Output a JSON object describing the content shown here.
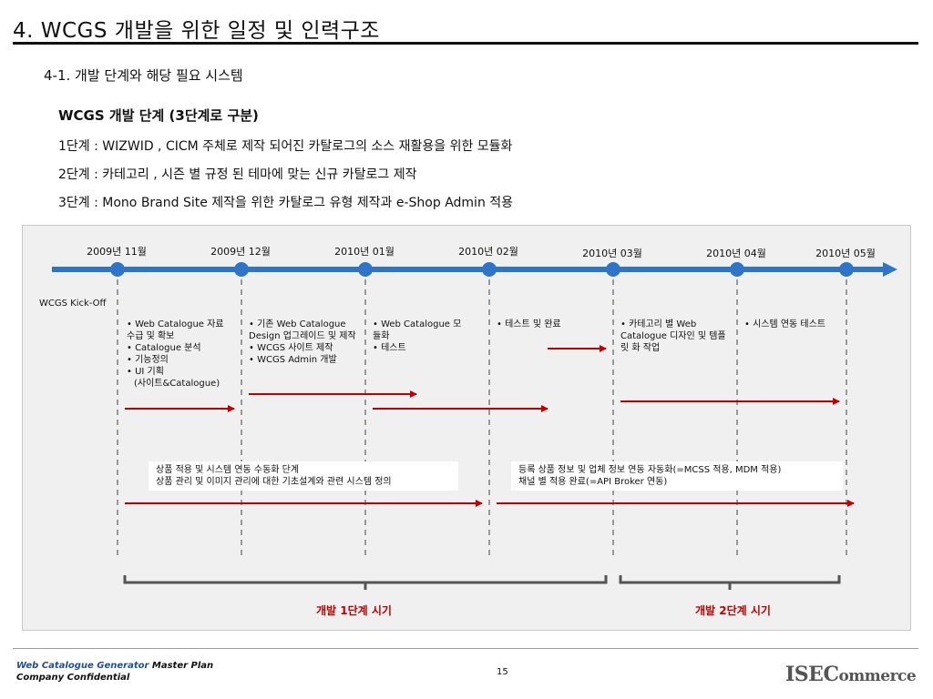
{
  "page": {
    "title": "4. WCGS 개발을 위한 일정 및 인력구조",
    "subtitle": "4-1. 개발 단계와 해당 필요 시스템",
    "stages_heading": "WCGS 개발 단계 (3단계로 구분)",
    "stages": [
      "1단계 : WIZWID , CICM 주체로 제작 되어진 카탈로그의 소스 재활용을 위한 모듈화",
      "2단계 : 카테고리 , 시즌 별 규정 된 테마에 맞는 신규 카탈로그 제작",
      "3단계 : Mono Brand Site 제작을 위한 카탈로그 유형 제작과 e-Shop Admin 적용"
    ]
  },
  "timeline": {
    "dates": [
      "2009년 11월",
      "2009년 12월",
      "2010년 01월",
      "2010년 02월",
      "2010년 03월",
      "2010년 04월",
      "2010년 05월"
    ],
    "kickoff_label": "WCGS Kick-Off",
    "notes": [
      [
        "• Web Catalogue 자료 수급 및 확보",
        "• Catalogue 분석",
        "• 기능정의",
        "• UI 기획",
        "(사이트&Catalogue)"
      ],
      [
        "• 기존 Web Catalogue Design 업그레이드 및 제작",
        "• WCGS 사이트 제작",
        "• WCGS Admin 개발"
      ],
      [
        "• Web Catalogue 모듈화",
        "• 테스트"
      ],
      [
        "• 테스트 및 완료"
      ],
      [
        "• 카테고리 별 Web Catalogue 디자인 및 템플릿 화 작업"
      ],
      [
        "• 시스템 연동 테스트"
      ]
    ],
    "phase1_box": [
      "상품 적용 및 시스템 연동 수동화 단계",
      "상품 관리 및 이미지 관리에 대한 기초설계와 관련 시스템 정의"
    ],
    "phase2_box": [
      "등록 상품 정보 및 업체 정보 연동 자동화(=MCSS 적용, MDM 적용)",
      "채널 별 적용 완료(=API Broker 연동)"
    ],
    "phase1_label": "개발 1단계 시기",
    "phase2_label": "개발 2단계 시기",
    "colors": {
      "axis": "#2e75c7",
      "arrow": "#c00000",
      "dash": "#999999",
      "bracket": "#555555"
    }
  },
  "footer": {
    "product": "Web Catalogue Generator",
    "doc": "Master Plan",
    "confidential": "Company Confidential",
    "page_number": "15",
    "logo_prefix": "ISE",
    "logo_letter": "C",
    "logo_rest": "ommerce"
  }
}
